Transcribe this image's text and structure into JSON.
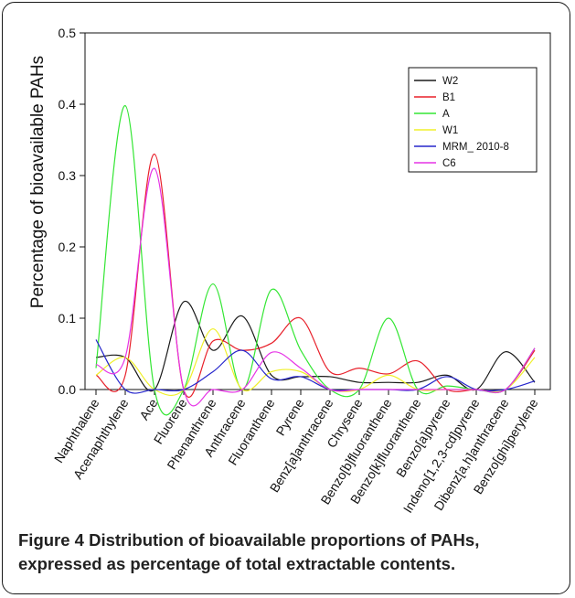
{
  "caption": {
    "figure_label": "Figure 4",
    "text": "Distribution of bioavailable proportions of PAHs, expressed as percentage of total extractable contents."
  },
  "chart_data": {
    "type": "line",
    "title": "",
    "xlabel": "",
    "ylabel": "Percentage of bioavailable PAHs",
    "ylim": [
      0,
      0.5
    ],
    "yticks": [
      "0.0",
      "0.1",
      "0.2",
      "0.3",
      "0.4",
      "0.5"
    ],
    "grid": false,
    "legend_position": "top-right",
    "categories": [
      "Naphthalene",
      "Acenaphthylene",
      "Ace",
      "Fluorene",
      "Phenanthrene",
      "Anthracene",
      "Fluoranthene",
      "Pyrene",
      "Benz[a]anthracene",
      "Chrysene",
      "Benzo[b]fluoranthene",
      "Benzo[k]fluoranthene",
      "Benzo[a]pyrene",
      "Indeno[1,2,3-cd]pyrene",
      "Dibenz[a,h]anthracene",
      "Benzo[ghi]perylene"
    ],
    "series": [
      {
        "name": "W2",
        "color": "#1a1a1a",
        "values": [
          0.045,
          0.045,
          0.0,
          0.123,
          0.055,
          0.103,
          0.02,
          0.018,
          0.018,
          0.01,
          0.01,
          0.01,
          0.02,
          0.0,
          0.053,
          0.01
        ]
      },
      {
        "name": "B1",
        "color": "#e8202a",
        "values": [
          0.02,
          0.02,
          0.33,
          0.0,
          0.068,
          0.055,
          0.065,
          0.1,
          0.025,
          0.03,
          0.022,
          0.04,
          0.0,
          0.0,
          0.0,
          0.055
        ]
      },
      {
        "name": "A",
        "color": "#33e633",
        "values": [
          0.03,
          0.398,
          0.0,
          0.0,
          0.148,
          0.0,
          0.14,
          0.055,
          0.0,
          0.0,
          0.1,
          0.0,
          0.005,
          0.0,
          0.0,
          0.058
        ]
      },
      {
        "name": "W1",
        "color": "#f0f02a",
        "values": [
          0.02,
          0.045,
          0.0,
          0.0,
          0.085,
          0.0,
          0.025,
          0.025,
          0.0,
          0.0,
          0.02,
          0.0,
          0.0,
          0.0,
          0.0,
          0.045
        ]
      },
      {
        "name": "MRM_ 2010-8",
        "color": "#2626cc",
        "values": [
          0.07,
          0.0,
          0.0,
          0.0,
          0.025,
          0.055,
          0.015,
          0.018,
          0.0,
          0.0,
          0.0,
          0.0,
          0.018,
          0.0,
          0.0,
          0.012
        ]
      },
      {
        "name": "C6",
        "color": "#e633e6",
        "values": [
          0.035,
          0.045,
          0.31,
          0.0,
          0.0,
          0.0,
          0.052,
          0.03,
          0.0,
          0.0,
          0.0,
          0.0,
          0.0,
          0.0,
          0.0,
          0.058
        ]
      }
    ]
  }
}
